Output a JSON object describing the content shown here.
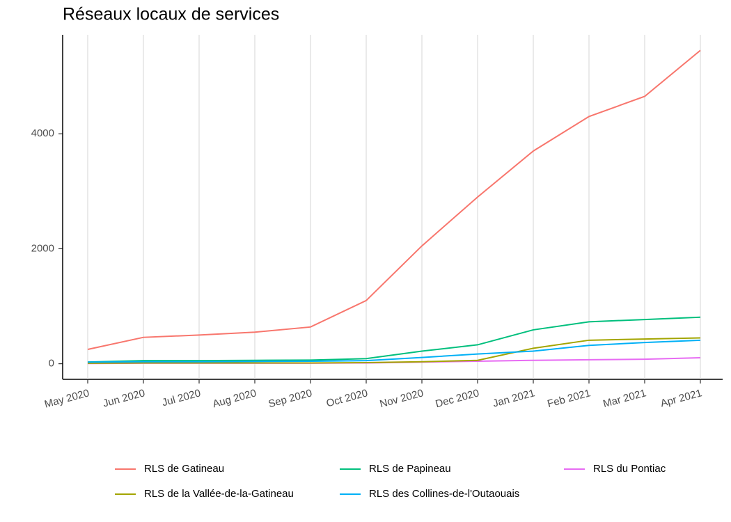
{
  "chart_data": {
    "type": "line",
    "title": "Réseaux locaux de services",
    "x": [
      "2020-05",
      "2020-06",
      "2020-07",
      "2020-08",
      "2020-09",
      "2020-10",
      "2020-11",
      "2020-12",
      "2021-01",
      "2021-02",
      "2021-03",
      "2021-04"
    ],
    "series": [
      {
        "name": "RLS de Gatineau",
        "color": "#F8766D",
        "values": [
          250,
          460,
          500,
          550,
          640,
          1100,
          2050,
          2900,
          3700,
          4300,
          4650,
          5450
        ]
      },
      {
        "name": "RLS de Papineau",
        "color": "#00BF7D",
        "values": [
          30,
          55,
          55,
          60,
          65,
          90,
          220,
          330,
          590,
          730,
          770,
          810
        ]
      },
      {
        "name": "RLS du Pontiac",
        "color": "#E76BF3",
        "values": [
          5,
          10,
          10,
          10,
          10,
          15,
          30,
          45,
          60,
          70,
          80,
          105
        ]
      },
      {
        "name": "RLS de la Vallée-de-la-Gatineau",
        "color": "#A3A500",
        "values": [
          10,
          15,
          15,
          15,
          15,
          20,
          35,
          60,
          270,
          410,
          430,
          450
        ]
      },
      {
        "name": "RLS des Collines-de-l'Outaouais",
        "color": "#00B0F6",
        "values": [
          30,
          35,
          35,
          40,
          45,
          55,
          110,
          170,
          220,
          320,
          370,
          410
        ]
      }
    ],
    "xlim": [
      "2020-04",
      "2021-05"
    ],
    "xticks": [
      {
        "value": "2020-05",
        "label": "May 2020"
      },
      {
        "value": "2020-06",
        "label": "Jun 2020"
      },
      {
        "value": "2020-07",
        "label": "Jul 2020"
      },
      {
        "value": "2020-08",
        "label": "Aug 2020"
      },
      {
        "value": "2020-09",
        "label": "Sep 2020"
      },
      {
        "value": "2020-10",
        "label": "Oct 2020"
      },
      {
        "value": "2020-11",
        "label": "Nov 2020"
      },
      {
        "value": "2020-12",
        "label": "Dec 2020"
      },
      {
        "value": "2021-01",
        "label": "Jan 2021"
      },
      {
        "value": "2021-02",
        "label": "Feb 2021"
      },
      {
        "value": "2021-03",
        "label": "Mar 2021"
      },
      {
        "value": "2021-04",
        "label": "Apr 2021"
      }
    ],
    "ylim": [
      -270,
      5600
    ],
    "yticks": [
      0,
      2000,
      4000
    ],
    "grid": true,
    "legend_position": "bottom"
  }
}
